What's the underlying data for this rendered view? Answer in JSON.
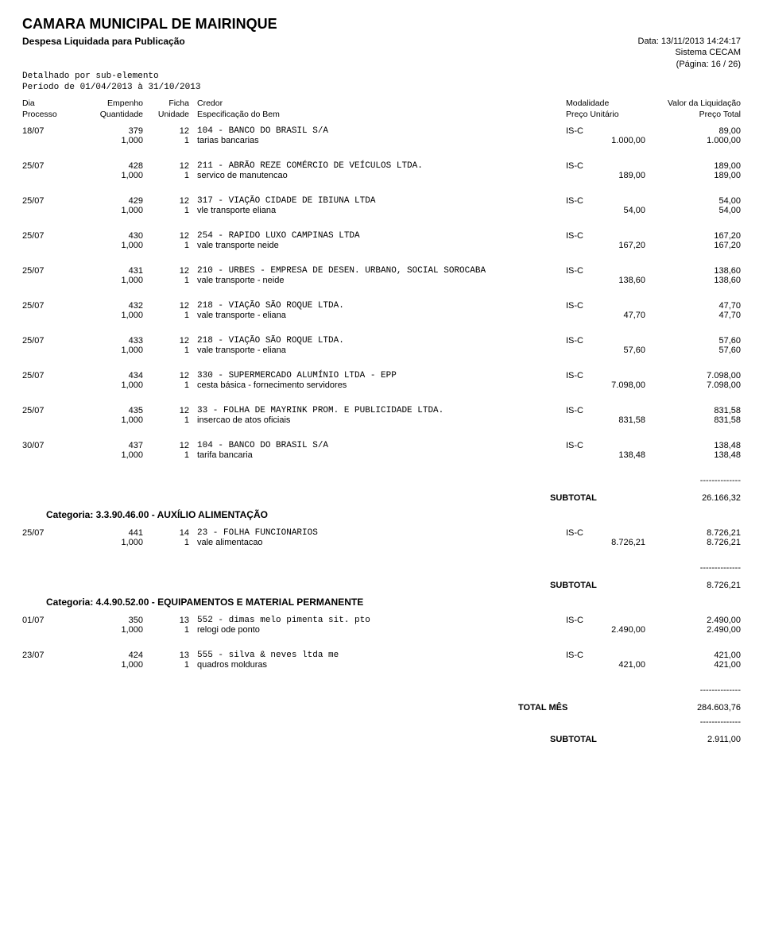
{
  "header": {
    "org": "CAMARA MUNICIPAL DE MAIRINQUE",
    "report": "Despesa Liquidada para Publicação",
    "detail1": "Detalhado por sub-elemento",
    "detail2": "Período de 01/04/2013 à 31/10/2013",
    "data": "Data: 13/11/2013 14:24:17",
    "sistema": "Sistema CECAM",
    "pagina": "(Página: 16 / 26)"
  },
  "colhdr": {
    "dia": "Dia",
    "processo": "Processo",
    "empenho": "Empenho",
    "quantidade": "Quantidade",
    "ficha": "Ficha",
    "unidade": "Unidade",
    "credor": "Credor",
    "espec": "Especificação do Bem",
    "modalidade": "Modalidade",
    "preco_unit": "Preço Unitário",
    "valor": "Valor da Liquidação",
    "preco_total": "Preço Total"
  },
  "entries": [
    {
      "dia": "18/07",
      "emp": "379",
      "ficha": "12",
      "credor": "104 - BANCO DO BRASIL S/A",
      "mod": "IS-C",
      "valor": "89,00",
      "qtd": "1,000",
      "uni": "1",
      "espec": "tarias bancarias",
      "pu": "1.000,00",
      "pt": "1.000,00"
    },
    {
      "dia": "25/07",
      "emp": "428",
      "ficha": "12",
      "credor": "211 - ABRÃO REZE COMÉRCIO DE VEÍCULOS LTDA.",
      "mod": "IS-C",
      "valor": "189,00",
      "qtd": "1,000",
      "uni": "1",
      "espec": "servico de manutencao",
      "pu": "189,00",
      "pt": "189,00"
    },
    {
      "dia": "25/07",
      "emp": "429",
      "ficha": "12",
      "credor": "317 - VIAÇÃO CIDADE DE IBIUNA LTDA",
      "mod": "IS-C",
      "valor": "54,00",
      "qtd": "1,000",
      "uni": "1",
      "espec": "vle transporte eliana",
      "pu": "54,00",
      "pt": "54,00"
    },
    {
      "dia": "25/07",
      "emp": "430",
      "ficha": "12",
      "credor": "254 - RAPIDO LUXO CAMPINAS LTDA",
      "mod": "IS-C",
      "valor": "167,20",
      "qtd": "1,000",
      "uni": "1",
      "espec": "vale transporte neide",
      "pu": "167,20",
      "pt": "167,20"
    },
    {
      "dia": "25/07",
      "emp": "431",
      "ficha": "12",
      "credor": "210 - URBES - EMPRESA DE DESEN. URBANO, SOCIAL SOROCABA",
      "mod": "IS-C",
      "valor": "138,60",
      "qtd": "1,000",
      "uni": "1",
      "espec": "vale transporte - neide",
      "pu": "138,60",
      "pt": "138,60"
    },
    {
      "dia": "25/07",
      "emp": "432",
      "ficha": "12",
      "credor": "218 - VIAÇÃO SÃO ROQUE LTDA.",
      "mod": "IS-C",
      "valor": "47,70",
      "qtd": "1,000",
      "uni": "1",
      "espec": "vale transporte - eliana",
      "pu": "47,70",
      "pt": "47,70"
    },
    {
      "dia": "25/07",
      "emp": "433",
      "ficha": "12",
      "credor": "218 - VIAÇÃO SÃO ROQUE LTDA.",
      "mod": "IS-C",
      "valor": "57,60",
      "qtd": "1,000",
      "uni": "1",
      "espec": "vale transporte - eliana",
      "pu": "57,60",
      "pt": "57,60"
    },
    {
      "dia": "25/07",
      "emp": "434",
      "ficha": "12",
      "credor": "330 - SUPERMERCADO ALUMÍNIO LTDA - EPP",
      "mod": "IS-C",
      "valor": "7.098,00",
      "qtd": "1,000",
      "uni": "1",
      "espec": "cesta básica - fornecimento servidores",
      "pu": "7.098,00",
      "pt": "7.098,00"
    },
    {
      "dia": "25/07",
      "emp": "435",
      "ficha": "12",
      "credor": "33 - FOLHA DE MAYRINK PROM. E PUBLICIDADE LTDA.",
      "mod": "IS-C",
      "valor": "831,58",
      "qtd": "1,000",
      "uni": "1",
      "espec": "insercao de atos oficiais",
      "pu": "831,58",
      "pt": "831,58"
    },
    {
      "dia": "30/07",
      "emp": "437",
      "ficha": "12",
      "credor": "104 - BANCO DO BRASIL S/A",
      "mod": "IS-C",
      "valor": "138,48",
      "qtd": "1,000",
      "uni": "1",
      "espec": "tarifa bancaria",
      "pu": "138,48",
      "pt": "138,48"
    }
  ],
  "subtotal1": {
    "label": "SUBTOTAL",
    "dashes": "--------------",
    "value": "26.166,32"
  },
  "categoria1": "Categoria: 3.3.90.46.00 - AUXÍLIO ALIMENTAÇÃO",
  "entries2": [
    {
      "dia": "25/07",
      "emp": "441",
      "ficha": "14",
      "credor": "23 - FOLHA FUNCIONARIOS",
      "mod": "IS-C",
      "valor": "8.726,21",
      "qtd": "1,000",
      "uni": "1",
      "espec": "vale alimentacao",
      "pu": "8.726,21",
      "pt": "8.726,21"
    }
  ],
  "subtotal2": {
    "label": "SUBTOTAL",
    "dashes": "--------------",
    "value": "8.726,21"
  },
  "categoria2": "Categoria: 4.4.90.52.00 - EQUIPAMENTOS E MATERIAL PERMANENTE",
  "entries3": [
    {
      "dia": "01/07",
      "emp": "350",
      "ficha": "13",
      "credor": "552 - dimas melo pimenta sit. pto",
      "mod": "IS-C",
      "valor": "2.490,00",
      "qtd": "1,000",
      "uni": "1",
      "espec": "relogi ode ponto",
      "pu": "2.490,00",
      "pt": "2.490,00"
    },
    {
      "dia": "23/07",
      "emp": "424",
      "ficha": "13",
      "credor": "555 - silva & neves ltda me",
      "mod": "IS-C",
      "valor": "421,00",
      "qtd": "1,000",
      "uni": "1",
      "espec": "quadros molduras",
      "pu": "421,00",
      "pt": "421,00"
    }
  ],
  "totalmes": {
    "label": "TOTAL MÊS",
    "dashes": "--------------",
    "value": "284.603,76"
  },
  "subtotal3": {
    "label": "SUBTOTAL",
    "dashes": "--------------",
    "value": "2.911,00"
  }
}
